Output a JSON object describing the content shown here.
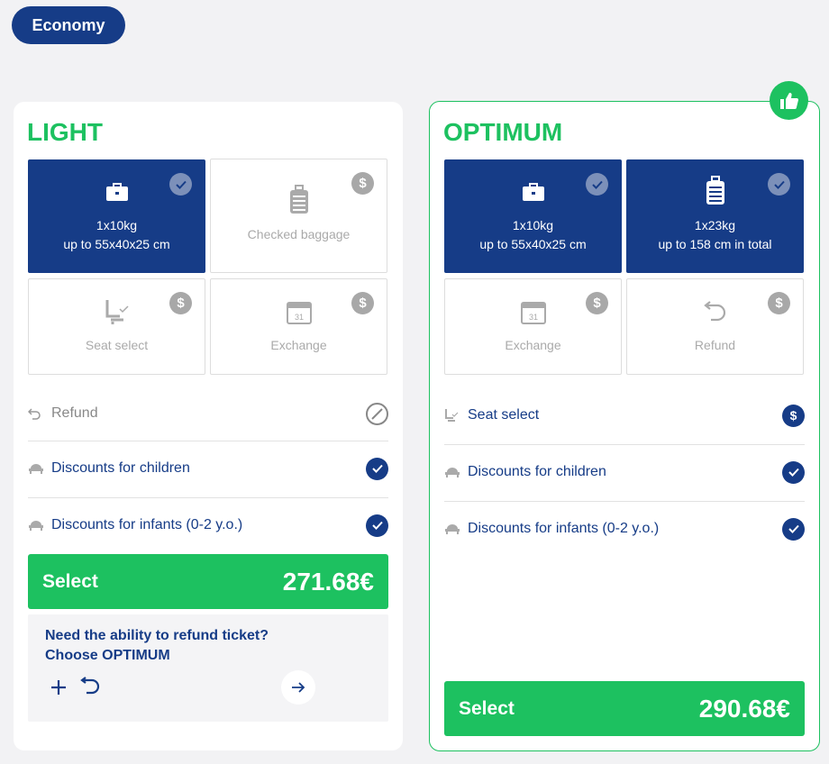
{
  "cabin_class": "Economy",
  "colors": {
    "brand_navy": "#163c87",
    "accent_green": "#1dc160"
  },
  "fares": [
    {
      "name": "LIGHT",
      "recommended": false,
      "tiles": [
        {
          "icon": "briefcase-icon",
          "line1": "1x10kg",
          "line2": "up to 55x40x25 cm",
          "included": true
        },
        {
          "icon": "suitcase-icon",
          "line1": "Checked baggage",
          "included": false,
          "status_icon": "dollar-icon"
        },
        {
          "icon": "seat-icon",
          "line1": "Seat select",
          "included": false,
          "status_icon": "dollar-icon"
        },
        {
          "icon": "calendar-icon",
          "line1": "Exchange",
          "included": false,
          "status_icon": "dollar-icon"
        }
      ],
      "features": [
        {
          "icon": "refund-icon",
          "label": "Refund",
          "status": "unavailable"
        },
        {
          "icon": "stroller-icon",
          "label": "Discounts for children",
          "status": "included"
        },
        {
          "icon": "stroller-icon",
          "label": "Discounts for infants (0-2 y.o.)",
          "status": "included"
        }
      ],
      "select_label": "Select",
      "price": "271.68€",
      "promo": {
        "line1": "Need the ability to refund ticket?",
        "line2": "Choose OPTIMUM"
      }
    },
    {
      "name": "OPTIMUM",
      "recommended": true,
      "recommended_icon": "thumbs-up-icon",
      "tiles": [
        {
          "icon": "briefcase-icon",
          "line1": "1x10kg",
          "line2": "up to 55x40x25 cm",
          "included": true
        },
        {
          "icon": "suitcase-icon",
          "line1": "1x23kg",
          "line2": "up to 158 cm in total",
          "included": true
        },
        {
          "icon": "calendar-icon",
          "line1": "Exchange",
          "included": false,
          "status_icon": "dollar-icon"
        },
        {
          "icon": "refund-icon",
          "line1": "Refund",
          "included": false,
          "status_icon": "dollar-icon"
        }
      ],
      "features": [
        {
          "icon": "seat-icon",
          "label": "Seat select",
          "status": "paid"
        },
        {
          "icon": "stroller-icon",
          "label": "Discounts for children",
          "status": "included"
        },
        {
          "icon": "stroller-icon",
          "label": "Discounts for infants (0-2 y.o.)",
          "status": "included"
        }
      ],
      "select_label": "Select",
      "price": "290.68€"
    }
  ]
}
